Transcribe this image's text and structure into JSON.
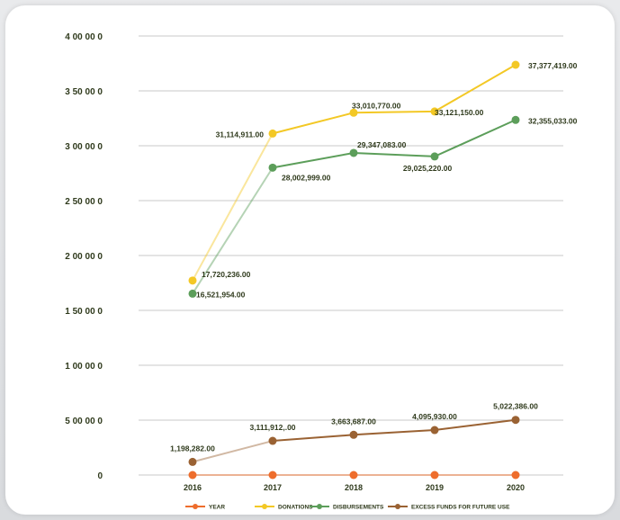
{
  "chart_data": {
    "type": "line",
    "categories": [
      "2016",
      "2017",
      "2018",
      "2019",
      "2020"
    ],
    "ylim": [
      0,
      40000000
    ],
    "yticks": [
      {
        "value": 0,
        "label": "0"
      },
      {
        "value": 5000000,
        "label": "5 00 00 0"
      },
      {
        "value": 10000000,
        "label": "1 00 00 0"
      },
      {
        "value": 15000000,
        "label": "1 50 00 0"
      },
      {
        "value": 20000000,
        "label": "2 00 00 0"
      },
      {
        "value": 25000000,
        "label": "2 50 00 0"
      },
      {
        "value": 30000000,
        "label": "3 00 00 0"
      },
      {
        "value": 35000000,
        "label": "3 50 00 0"
      },
      {
        "value": 40000000,
        "label": "4 00 00 0"
      }
    ],
    "grid": true,
    "legend_position": "bottom",
    "series": [
      {
        "name": "YEAR",
        "color": "#ee6d2c",
        "values": [
          0,
          0,
          0,
          0,
          0
        ],
        "labels": [
          "",
          "",
          "",
          "",
          ""
        ]
      },
      {
        "name": "DONATIONS",
        "color": "#f3c825",
        "values": [
          17720236.0,
          31114911.0,
          33010770.0,
          33121150.0,
          37377419.0
        ],
        "labels": [
          "17,720,236.00",
          "31,114,911.00",
          "33,010,770.00",
          "33,121,150.00",
          "37,377,419.00"
        ]
      },
      {
        "name": "DISBURSEMENTS",
        "color": "#5c9e5a",
        "values": [
          16521954.0,
          28002999.0,
          29347083.0,
          29025220.0,
          32355033.0
        ],
        "labels": [
          "16,521,954.00",
          "28,002,999.00",
          "29,347,083.00",
          "29,025,220.00",
          "32,355,033.00"
        ]
      },
      {
        "name": "EXCESS FUNDS FOR FUTURE USE",
        "color": "#9a6233",
        "values": [
          1198282.0,
          3111912.0,
          3663687.0,
          4095930.0,
          5022386.0
        ],
        "labels": [
          "1,198,282.00",
          "3,111,912,.00",
          "3,663,687.00",
          "4,095,930.00",
          "5,022,386.00"
        ]
      }
    ]
  }
}
